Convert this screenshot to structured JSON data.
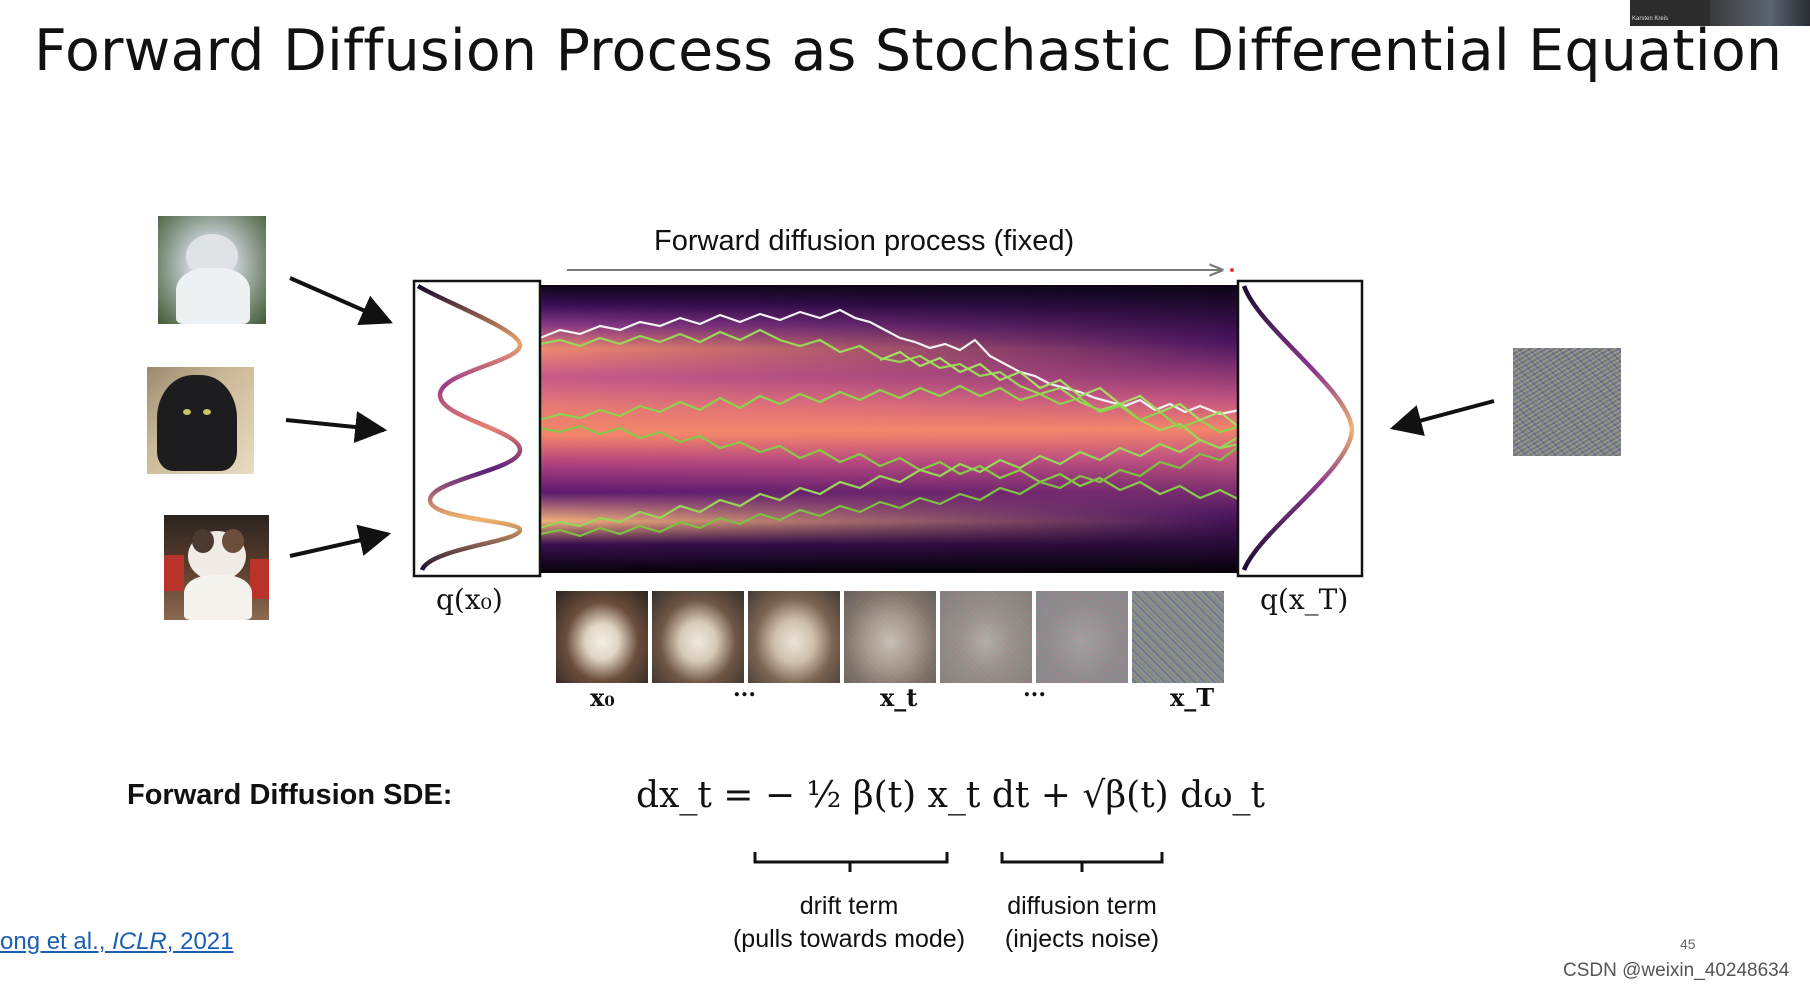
{
  "title": "Forward Diffusion Process as Stochastic Differential Equation",
  "webcam": {
    "name": "Karsten Kreis"
  },
  "process_arrow_label": "Forward diffusion process (fixed)",
  "dist_left_label": "q(x₀)",
  "dist_right_label": "q(x_T)",
  "strip_labels": [
    "x₀",
    "...",
    "x_t",
    "...",
    "x_T"
  ],
  "sde": {
    "label": "Forward Diffusion SDE:",
    "equation": "dx_t = − ½ β(t) x_t dt + √β(t) dω_t",
    "drift": {
      "line1": "drift term",
      "line2": "(pulls towards mode)"
    },
    "diffusion": {
      "line1": "diffusion term",
      "line2": "(injects noise)"
    }
  },
  "reference": {
    "prefix": "ong et al., ",
    "venue": "ICLR",
    "year": ", 2021"
  },
  "page_number": "45",
  "watermark": "CSDN @weixin_40248634",
  "colors": {
    "trajectory_green": "#8fd14f",
    "trajectory_white": "#f2f2f2",
    "heat_core": "#f4866a",
    "heat_mid": "#b0407e",
    "heat_edge": "#2a0b43"
  }
}
